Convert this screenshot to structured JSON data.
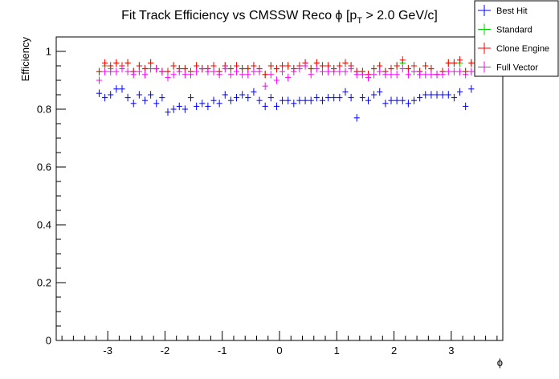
{
  "chart_data": {
    "type": "scatter",
    "title_main": "Fit Track Efficiency vs CMSSW Reco ",
    "title_phi": "ϕ",
    "title_p": " [p",
    "title_sub": "T",
    "title_end": " > 2.0 GeV/c]",
    "xlabel": "ϕ",
    "ylabel": "Efficiency",
    "xlim": [
      -3.9,
      3.9
    ],
    "ylim": [
      0,
      1.05
    ],
    "xticks": [
      -3,
      -2,
      -1,
      0,
      1,
      2,
      3
    ],
    "xtick_labels": [
      "-3",
      "-2",
      "-1",
      "0",
      "1",
      "2",
      "3"
    ],
    "yticks": [
      0,
      0.2,
      0.4,
      0.6,
      0.8,
      1
    ],
    "ytick_labels": [
      "0",
      "0.2",
      "0.4",
      "0.6",
      "0.8",
      "1"
    ],
    "bin_start": -3.15,
    "bin_width": 0.1,
    "legend_position": "top-right",
    "series": [
      {
        "name": "Best Hit",
        "color": "#0000ff",
        "values": [
          0.855,
          0.84,
          0.85,
          0.87,
          0.87,
          0.84,
          0.82,
          0.85,
          0.83,
          0.85,
          0.82,
          0.84,
          0.79,
          0.8,
          0.81,
          0.8,
          0.84,
          0.81,
          0.82,
          0.81,
          0.83,
          0.82,
          0.85,
          0.83,
          0.84,
          0.85,
          0.84,
          0.86,
          0.83,
          0.81,
          0.84,
          0.81,
          0.83,
          0.83,
          0.82,
          0.83,
          0.83,
          0.83,
          0.84,
          0.83,
          0.84,
          0.84,
          0.84,
          0.86,
          0.84,
          0.77,
          0.84,
          0.83,
          0.85,
          0.86,
          0.82,
          0.83,
          0.83,
          0.83,
          0.82,
          0.83,
          0.84,
          0.85,
          0.85,
          0.85,
          0.85,
          0.85,
          0.84,
          0.86,
          0.81,
          0.87
        ]
      },
      {
        "name": "Standard",
        "color": "#00cc00",
        "values": [
          0.93,
          0.95,
          0.94,
          0.96,
          0.95,
          0.96,
          0.93,
          0.95,
          0.94,
          0.96,
          0.94,
          0.93,
          0.93,
          0.95,
          0.94,
          0.94,
          0.93,
          0.95,
          0.94,
          0.94,
          0.95,
          0.93,
          0.95,
          0.94,
          0.95,
          0.94,
          0.94,
          0.95,
          0.94,
          0.92,
          0.95,
          0.94,
          0.95,
          0.95,
          0.94,
          0.95,
          0.96,
          0.94,
          0.96,
          0.95,
          0.95,
          0.94,
          0.95,
          0.96,
          0.95,
          0.93,
          0.93,
          0.92,
          0.94,
          0.95,
          0.93,
          0.94,
          0.95,
          0.96,
          0.94,
          0.95,
          0.93,
          0.95,
          0.94,
          0.92,
          0.93,
          0.96,
          0.96,
          0.96,
          0.93,
          0.96
        ]
      },
      {
        "name": "Clone Engine",
        "color": "#ff0000",
        "values": [
          0.93,
          0.96,
          0.95,
          0.96,
          0.95,
          0.96,
          0.93,
          0.95,
          0.94,
          0.96,
          0.94,
          0.93,
          0.93,
          0.95,
          0.94,
          0.94,
          0.93,
          0.95,
          0.94,
          0.94,
          0.95,
          0.93,
          0.95,
          0.94,
          0.95,
          0.94,
          0.94,
          0.95,
          0.94,
          0.92,
          0.95,
          0.94,
          0.95,
          0.95,
          0.94,
          0.95,
          0.96,
          0.94,
          0.96,
          0.95,
          0.95,
          0.94,
          0.95,
          0.96,
          0.95,
          0.93,
          0.93,
          0.92,
          0.94,
          0.95,
          0.93,
          0.94,
          0.95,
          0.97,
          0.94,
          0.95,
          0.93,
          0.95,
          0.94,
          0.92,
          0.93,
          0.96,
          0.96,
          0.97,
          0.93,
          0.96
        ]
      },
      {
        "name": "Full Vector",
        "color": "#ff00ff",
        "values": [
          0.9,
          0.93,
          0.93,
          0.93,
          0.94,
          0.93,
          0.92,
          0.93,
          0.92,
          0.94,
          0.94,
          0.93,
          0.91,
          0.92,
          0.93,
          0.92,
          0.92,
          0.93,
          0.94,
          0.93,
          0.93,
          0.92,
          0.94,
          0.92,
          0.93,
          0.92,
          0.92,
          0.93,
          0.93,
          0.88,
          0.92,
          0.9,
          0.93,
          0.91,
          0.93,
          0.94,
          0.95,
          0.92,
          0.94,
          0.93,
          0.93,
          0.93,
          0.93,
          0.93,
          0.94,
          0.92,
          0.92,
          0.91,
          0.92,
          0.93,
          0.92,
          0.92,
          0.92,
          0.94,
          0.92,
          0.93,
          0.92,
          0.92,
          0.92,
          0.92,
          0.92,
          0.93,
          0.93,
          0.93,
          0.92,
          0.93
        ]
      }
    ]
  }
}
